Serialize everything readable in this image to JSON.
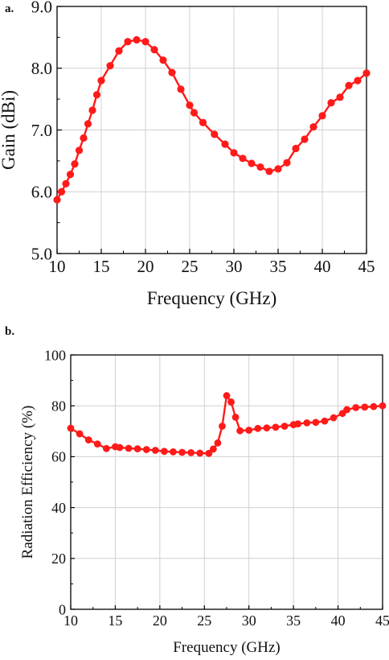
{
  "chart_data": [
    {
      "panel_label": "a.",
      "type": "line",
      "xlabel": "Frequency (GHz)",
      "ylabel": "Gain (dBi)",
      "xlim": [
        10,
        45
      ],
      "ylim": [
        5.0,
        9.0
      ],
      "xticks": [
        "10",
        "15",
        "20",
        "25",
        "30",
        "35",
        "40",
        "45"
      ],
      "yticks": [
        "5.0",
        "6.0",
        "7.0",
        "8.0",
        "9.0"
      ],
      "grid": true,
      "color": "#ff1a1a",
      "series": [
        {
          "x": [
            10,
            10.5,
            11,
            11.5,
            12,
            12.5,
            13,
            13.5,
            14,
            14.5,
            15,
            16,
            17,
            18,
            19,
            20,
            21,
            22,
            23,
            24,
            25,
            25.5,
            26.5,
            27.8,
            29,
            30,
            31,
            32,
            33,
            34,
            35,
            36,
            37,
            38,
            39,
            40,
            41,
            42,
            43,
            44,
            45
          ],
          "values": [
            5.87,
            6.0,
            6.13,
            6.28,
            6.45,
            6.67,
            6.87,
            7.1,
            7.32,
            7.57,
            7.8,
            8.04,
            8.28,
            8.43,
            8.46,
            8.43,
            8.3,
            8.13,
            7.93,
            7.66,
            7.4,
            7.28,
            7.12,
            6.93,
            6.77,
            6.63,
            6.54,
            6.46,
            6.4,
            6.33,
            6.37,
            6.47,
            6.7,
            6.85,
            7.05,
            7.23,
            7.44,
            7.53,
            7.72,
            7.8,
            7.92
          ]
        }
      ]
    },
    {
      "panel_label": "b.",
      "type": "line",
      "xlabel": "Frequency (GHz)",
      "ylabel": "Radiation Efficiency (%)",
      "xlim": [
        10,
        45
      ],
      "ylim": [
        0,
        100
      ],
      "xticks": [
        "10",
        "15",
        "20",
        "25",
        "30",
        "35",
        "40",
        "45"
      ],
      "yticks": [
        "0",
        "20",
        "40",
        "60",
        "80",
        "100"
      ],
      "grid": true,
      "color": "#ff1a1a",
      "series": [
        {
          "x": [
            10,
            11,
            12,
            13,
            14,
            15,
            15.5,
            16.5,
            17.5,
            18.5,
            19.5,
            20.5,
            21.5,
            22.5,
            23.5,
            24.5,
            25.5,
            26,
            26.5,
            27,
            27.5,
            28,
            28.5,
            29,
            30,
            31,
            32,
            33,
            34,
            35,
            35.5,
            36.5,
            37.5,
            38.5,
            39.5,
            40.5,
            41,
            42,
            43,
            44,
            45
          ],
          "values": [
            71.2,
            69.0,
            66.6,
            65.0,
            63.2,
            63.9,
            63.6,
            63.3,
            63.1,
            62.8,
            62.5,
            62.1,
            61.9,
            61.7,
            61.6,
            61.4,
            61.3,
            63.0,
            65.4,
            72.0,
            84.0,
            81.5,
            75.5,
            70.2,
            70.4,
            71.1,
            71.3,
            71.6,
            72.0,
            72.6,
            72.9,
            73.3,
            73.5,
            74.0,
            75.3,
            77.0,
            78.5,
            79.3,
            79.5,
            79.7,
            80.0
          ]
        }
      ]
    }
  ]
}
